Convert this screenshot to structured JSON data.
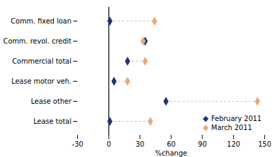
{
  "chart_data": {
    "type": "dumbbell",
    "categories": [
      "Comm. fixed loan",
      "Comm. revol. credit",
      "Commercial total",
      "Lease motor veh.",
      "Lease other",
      "Lease total"
    ],
    "series": [
      {
        "name": "February 2011",
        "color": "#1f3473",
        "marker": "diamond",
        "values": [
          1,
          35,
          18,
          5,
          55,
          1
        ]
      },
      {
        "name": "March 2011",
        "color": "#e8a87c",
        "marker": "diamond",
        "values": [
          44,
          33,
          35,
          18,
          143,
          40
        ]
      }
    ],
    "xlabel": "%change",
    "xlim": [
      -30,
      150
    ],
    "xticks": [
      -30,
      0,
      30,
      60,
      90,
      120,
      150
    ],
    "color": "#b0b0b0",
    "line_style": "dashed",
    "legend": "lower right",
    "grid": false
  }
}
